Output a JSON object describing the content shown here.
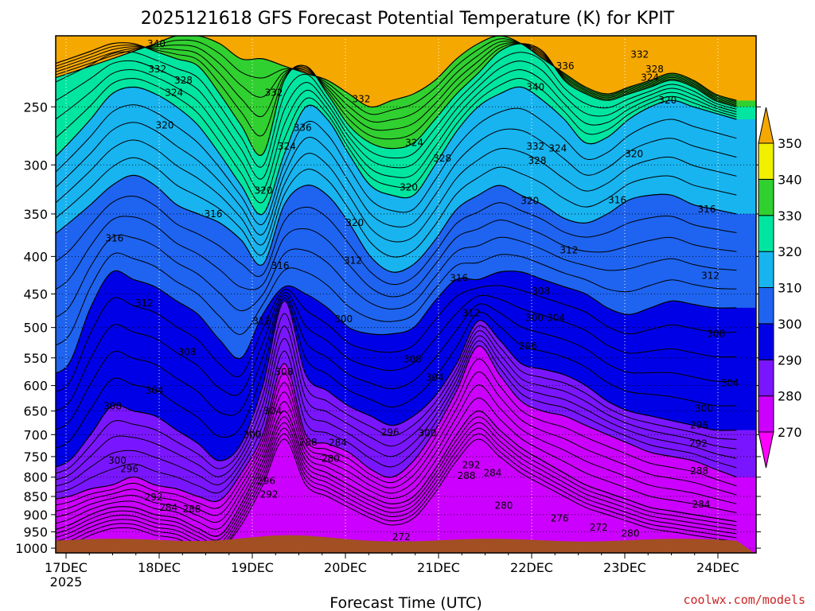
{
  "chart_data": {
    "type": "contour",
    "title": "2025121618 GFS Forecast Potential Temperature (K) for KPIT",
    "xlabel": "Forecast Time (UTC)",
    "credit": "coolwx.com/models",
    "x_ticks": [
      "17DEC",
      "18DEC",
      "19DEC",
      "20DEC",
      "21DEC",
      "22DEC",
      "23DEC",
      "24DEC"
    ],
    "x_year": "2025",
    "y_scale": "log-pressure",
    "y_ticks": [
      250,
      300,
      350,
      400,
      450,
      500,
      550,
      600,
      650,
      700,
      750,
      800,
      850,
      900,
      950,
      1000
    ],
    "y_range_hpa": [
      1015,
      200
    ],
    "contour_interval_k": 2,
    "colorbar": {
      "levels": [
        270,
        280,
        290,
        300,
        310,
        320,
        330,
        340,
        350
      ],
      "colors": [
        "#ff00ff",
        "#cc00ff",
        "#7a16ff",
        "#0000e6",
        "#1e64f0",
        "#18b4f0",
        "#00e6a0",
        "#30d030",
        "#f0f000",
        "#f5a800"
      ],
      "extend": "both"
    },
    "bands": [
      {
        "k": 350,
        "p": [
          230,
          225,
          220,
          215,
          210,
          205,
          200,
          200,
          205,
          215,
          215,
          220,
          225,
          230,
          240,
          250,
          245,
          240,
          230,
          215,
          205,
          200,
          205,
          215,
          225,
          235,
          240,
          235,
          230,
          225,
          230,
          240,
          245
        ]
      },
      {
        "k": 340,
        "p": [
          220,
          215,
          210,
          205,
          205,
          210,
          215,
          220,
          240,
          265,
          290,
          230,
          220,
          240,
          265,
          280,
          285,
          280,
          260,
          240,
          225,
          210,
          205,
          210,
          230,
          240,
          245,
          240,
          235,
          230,
          235,
          245,
          250
        ]
      },
      {
        "k": 330,
        "p": [
          300,
          280,
          260,
          240,
          235,
          240,
          250,
          265,
          290,
          320,
          350,
          290,
          250,
          260,
          290,
          320,
          330,
          330,
          300,
          270,
          250,
          240,
          235,
          245,
          260,
          280,
          275,
          260,
          250,
          245,
          250,
          255,
          260
        ]
      },
      {
        "k": 320,
        "p": [
          380,
          360,
          340,
          320,
          310,
          320,
          340,
          350,
          360,
          380,
          410,
          340,
          320,
          330,
          360,
          400,
          420,
          410,
          380,
          345,
          330,
          320,
          330,
          340,
          355,
          360,
          350,
          335,
          330,
          330,
          340,
          345,
          350
        ]
      },
      {
        "k": 310,
        "p": [
          580,
          560,
          470,
          420,
          430,
          440,
          460,
          480,
          520,
          550,
          480,
          440,
          450,
          470,
          500,
          510,
          510,
          500,
          460,
          430,
          430,
          420,
          420,
          430,
          440,
          450,
          470,
          480,
          470,
          460,
          465,
          470,
          470
        ]
      },
      {
        "k": 300,
        "p": [
          780,
          760,
          700,
          640,
          650,
          660,
          690,
          720,
          760,
          720,
          600,
          460,
          580,
          610,
          640,
          660,
          680,
          660,
          620,
          560,
          490,
          520,
          560,
          570,
          580,
          600,
          630,
          650,
          660,
          670,
          680,
          690,
          690
        ]
      },
      {
        "k": 290,
        "p": [
          860,
          850,
          830,
          820,
          800,
          820,
          830,
          850,
          860,
          790,
          700,
          560,
          700,
          720,
          740,
          780,
          800,
          760,
          690,
          610,
          530,
          580,
          630,
          650,
          660,
          680,
          700,
          720,
          740,
          750,
          760,
          780,
          800
        ]
      },
      {
        "k": 280,
        "p": [
          950,
          930,
          900,
          880,
          880,
          900,
          910,
          940,
          960,
          870,
          760,
          650,
          760,
          790,
          820,
          850,
          870,
          850,
          780,
          700,
          650,
          690,
          730,
          760,
          790,
          820,
          840,
          860,
          880,
          890,
          900,
          910,
          920
        ]
      }
    ],
    "contour_labels": [
      {
        "text": "340",
        "t": 0.97,
        "p": 205
      },
      {
        "text": "332",
        "t": 0.98,
        "p": 222
      },
      {
        "text": "328",
        "t": 1.26,
        "p": 230
      },
      {
        "text": "324",
        "t": 1.16,
        "p": 239
      },
      {
        "text": "332",
        "t": 2.23,
        "p": 239
      },
      {
        "text": "336",
        "t": 2.54,
        "p": 267
      },
      {
        "text": "332",
        "t": 3.17,
        "p": 244
      },
      {
        "text": "324",
        "t": 2.37,
        "p": 283
      },
      {
        "text": "320",
        "t": 1.06,
        "p": 265
      },
      {
        "text": "320",
        "t": 2.12,
        "p": 325
      },
      {
        "text": "316",
        "t": 1.58,
        "p": 350
      },
      {
        "text": "316",
        "t": 0.52,
        "p": 378
      },
      {
        "text": "316",
        "t": 2.3,
        "p": 412
      },
      {
        "text": "312",
        "t": 0.84,
        "p": 463
      },
      {
        "text": "312",
        "t": 2.1,
        "p": 490
      },
      {
        "text": "308",
        "t": 1.3,
        "p": 540
      },
      {
        "text": "308",
        "t": 2.34,
        "p": 575
      },
      {
        "text": "304",
        "t": 0.95,
        "p": 610
      },
      {
        "text": "304",
        "t": 2.22,
        "p": 650
      },
      {
        "text": "308",
        "t": 0.5,
        "p": 640
      },
      {
        "text": "300",
        "t": 2.0,
        "p": 700
      },
      {
        "text": "300",
        "t": 0.55,
        "p": 760
      },
      {
        "text": "296",
        "t": 0.68,
        "p": 780
      },
      {
        "text": "288",
        "t": 2.6,
        "p": 717
      },
      {
        "text": "284",
        "t": 2.92,
        "p": 718
      },
      {
        "text": "280",
        "t": 2.84,
        "p": 755
      },
      {
        "text": "296",
        "t": 2.15,
        "p": 810
      },
      {
        "text": "292",
        "t": 2.18,
        "p": 845
      },
      {
        "text": "292",
        "t": 0.94,
        "p": 852
      },
      {
        "text": "284",
        "t": 1.1,
        "p": 880
      },
      {
        "text": "288",
        "t": 1.35,
        "p": 885
      },
      {
        "text": "320",
        "t": 3.1,
        "p": 360
      },
      {
        "text": "312",
        "t": 3.08,
        "p": 405
      },
      {
        "text": "300",
        "t": 2.98,
        "p": 487
      },
      {
        "text": "324",
        "t": 3.74,
        "p": 280
      },
      {
        "text": "328",
        "t": 4.04,
        "p": 294
      },
      {
        "text": "320",
        "t": 3.68,
        "p": 322
      },
      {
        "text": "316",
        "t": 4.22,
        "p": 428
      },
      {
        "text": "312",
        "t": 4.35,
        "p": 478
      },
      {
        "text": "308",
        "t": 3.72,
        "p": 552
      },
      {
        "text": "304",
        "t": 3.96,
        "p": 585
      },
      {
        "text": "296",
        "t": 3.48,
        "p": 695
      },
      {
        "text": "300",
        "t": 3.88,
        "p": 697
      },
      {
        "text": "292",
        "t": 4.35,
        "p": 770
      },
      {
        "text": "288",
        "t": 4.3,
        "p": 797
      },
      {
        "text": "284",
        "t": 4.58,
        "p": 790
      },
      {
        "text": "280",
        "t": 4.7,
        "p": 875
      },
      {
        "text": "272",
        "t": 3.6,
        "p": 965
      },
      {
        "text": "340",
        "t": 5.04,
        "p": 235
      },
      {
        "text": "336",
        "t": 5.36,
        "p": 220
      },
      {
        "text": "332",
        "t": 5.04,
        "p": 283
      },
      {
        "text": "324",
        "t": 5.28,
        "p": 285
      },
      {
        "text": "328",
        "t": 5.06,
        "p": 296
      },
      {
        "text": "320",
        "t": 4.98,
        "p": 336
      },
      {
        "text": "316",
        "t": 5.92,
        "p": 335
      },
      {
        "text": "312",
        "t": 5.4,
        "p": 392
      },
      {
        "text": "308",
        "t": 5.1,
        "p": 446
      },
      {
        "text": "300",
        "t": 5.03,
        "p": 485
      },
      {
        "text": "304",
        "t": 5.26,
        "p": 485
      },
      {
        "text": "296",
        "t": 4.96,
        "p": 530
      },
      {
        "text": "276",
        "t": 5.3,
        "p": 910
      },
      {
        "text": "272",
        "t": 5.72,
        "p": 937
      },
      {
        "text": "320",
        "t": 6.1,
        "p": 290
      },
      {
        "text": "316",
        "t": 6.88,
        "p": 345
      },
      {
        "text": "312",
        "t": 6.92,
        "p": 425
      },
      {
        "text": "308",
        "t": 6.98,
        "p": 510
      },
      {
        "text": "304",
        "t": 7.13,
        "p": 595
      },
      {
        "text": "300",
        "t": 6.85,
        "p": 645
      },
      {
        "text": "296",
        "t": 6.8,
        "p": 680
      },
      {
        "text": "292",
        "t": 6.79,
        "p": 720
      },
      {
        "text": "288",
        "t": 6.8,
        "p": 785
      },
      {
        "text": "284",
        "t": 6.82,
        "p": 872
      },
      {
        "text": "280",
        "t": 6.06,
        "p": 955
      },
      {
        "text": "320",
        "t": 6.46,
        "p": 245
      },
      {
        "text": "332",
        "t": 6.16,
        "p": 212
      },
      {
        "text": "328",
        "t": 6.32,
        "p": 222
      },
      {
        "text": "324",
        "t": 6.27,
        "p": 228
      }
    ]
  }
}
